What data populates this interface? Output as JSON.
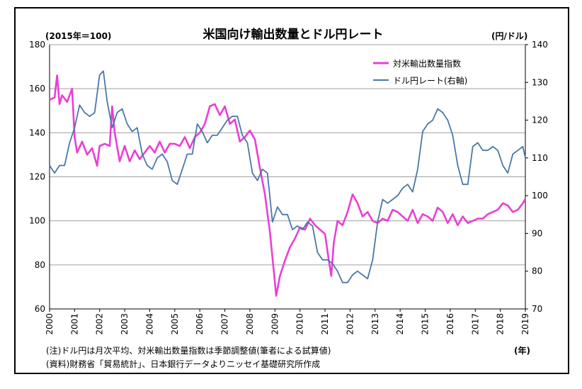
{
  "chart_data": {
    "type": "line",
    "title": "米国向け輸出数量とドル円レート",
    "y_left_unit": "(2015年＝100)",
    "y_right_unit": "(円/ドル)",
    "x_unit": "(年)",
    "y_left_range": [
      60,
      180
    ],
    "y_left_ticks": [
      "60",
      "80",
      "100",
      "120",
      "140",
      "160",
      "180"
    ],
    "y_right_range": [
      70,
      140
    ],
    "y_right_ticks": [
      "70",
      "80",
      "90",
      "100",
      "110",
      "120",
      "130",
      "140"
    ],
    "x_range": [
      2000,
      2019
    ],
    "x_ticks": [
      "2000",
      "2001",
      "2002",
      "2003",
      "2004",
      "2005",
      "2006",
      "2007",
      "2008",
      "2009",
      "2010",
      "2011",
      "2012",
      "2013",
      "2014",
      "2015",
      "2016",
      "2017",
      "2018",
      "2019"
    ],
    "grid": "horizontal",
    "legend_position": "top-right",
    "series": [
      {
        "name": "対米輸出数量指数",
        "axis": "left",
        "color": "#ea3fd6",
        "x": [
          2000.0,
          2000.2,
          2000.3,
          2000.4,
          2000.5,
          2000.7,
          2000.9,
          2001.0,
          2001.1,
          2001.3,
          2001.5,
          2001.7,
          2001.9,
          2002.0,
          2002.2,
          2002.4,
          2002.5,
          2002.6,
          2002.8,
          2003.0,
          2003.2,
          2003.4,
          2003.6,
          2003.8,
          2004.0,
          2004.2,
          2004.4,
          2004.6,
          2004.8,
          2005.0,
          2005.2,
          2005.4,
          2005.6,
          2005.8,
          2006.0,
          2006.2,
          2006.4,
          2006.6,
          2006.8,
          2007.0,
          2007.2,
          2007.4,
          2007.6,
          2007.8,
          2008.0,
          2008.2,
          2008.4,
          2008.6,
          2008.8,
          2009.0,
          2009.05,
          2009.2,
          2009.4,
          2009.6,
          2009.8,
          2010.0,
          2010.2,
          2010.4,
          2010.6,
          2010.8,
          2011.0,
          2011.15,
          2011.25,
          2011.35,
          2011.5,
          2011.7,
          2011.9,
          2012.1,
          2012.3,
          2012.5,
          2012.7,
          2012.9,
          2013.1,
          2013.3,
          2013.5,
          2013.7,
          2013.9,
          2014.1,
          2014.3,
          2014.5,
          2014.7,
          2014.9,
          2015.1,
          2015.3,
          2015.5,
          2015.7,
          2015.9,
          2016.1,
          2016.3,
          2016.5,
          2016.7,
          2016.9,
          2017.1,
          2017.3,
          2017.5,
          2017.7,
          2017.9,
          2018.1,
          2018.3,
          2018.5,
          2018.7,
          2018.9,
          2019.0
        ],
        "values": [
          155,
          156,
          166,
          153,
          157,
          154,
          160,
          138,
          131,
          136,
          130,
          133,
          125,
          134,
          135,
          134,
          152,
          140,
          127,
          134,
          127,
          132,
          128,
          131,
          134,
          131,
          136,
          131,
          135,
          135,
          134,
          138,
          133,
          138,
          140,
          144,
          152,
          153,
          148,
          152,
          144,
          146,
          136,
          138,
          141,
          137,
          124,
          112,
          95,
          72,
          66,
          75,
          82,
          88,
          92,
          97,
          96,
          101,
          98,
          96,
          94,
          82,
          75,
          90,
          100,
          98,
          104,
          112,
          108,
          102,
          104,
          100,
          99,
          101,
          100,
          105,
          104,
          102,
          100,
          105,
          99,
          103,
          102,
          100,
          106,
          104,
          99,
          103,
          98,
          102,
          99,
          100,
          101,
          101,
          103,
          104,
          105,
          108,
          107,
          104,
          105,
          108,
          110
        ]
      },
      {
        "name": "ドル円レート(右軸)",
        "axis": "right",
        "color": "#4a78a8",
        "x": [
          2000.0,
          2000.2,
          2000.4,
          2000.6,
          2000.8,
          2001.0,
          2001.2,
          2001.4,
          2001.6,
          2001.8,
          2002.0,
          2002.15,
          2002.3,
          2002.5,
          2002.7,
          2002.9,
          2003.1,
          2003.3,
          2003.5,
          2003.7,
          2003.9,
          2004.1,
          2004.3,
          2004.5,
          2004.7,
          2004.9,
          2005.1,
          2005.3,
          2005.5,
          2005.7,
          2005.9,
          2006.1,
          2006.3,
          2006.5,
          2006.7,
          2006.9,
          2007.1,
          2007.3,
          2007.5,
          2007.7,
          2007.9,
          2008.1,
          2008.3,
          2008.5,
          2008.7,
          2008.9,
          2009.1,
          2009.3,
          2009.5,
          2009.7,
          2009.9,
          2010.1,
          2010.3,
          2010.5,
          2010.7,
          2010.9,
          2011.1,
          2011.3,
          2011.5,
          2011.7,
          2011.9,
          2012.1,
          2012.3,
          2012.5,
          2012.7,
          2012.9,
          2013.1,
          2013.3,
          2013.5,
          2013.7,
          2013.9,
          2014.1,
          2014.3,
          2014.5,
          2014.7,
          2014.9,
          2015.1,
          2015.3,
          2015.5,
          2015.7,
          2015.9,
          2016.1,
          2016.3,
          2016.5,
          2016.7,
          2016.9,
          2017.1,
          2017.3,
          2017.5,
          2017.7,
          2017.9,
          2018.1,
          2018.3,
          2018.5,
          2018.7,
          2018.9,
          2019.0
        ],
        "values": [
          108,
          106,
          108,
          108,
          114,
          118,
          124,
          122,
          121,
          122,
          132,
          133,
          125,
          118,
          122,
          123,
          119,
          117,
          118,
          111,
          108,
          107,
          110,
          111,
          109,
          104,
          103,
          107,
          111,
          111,
          119,
          117,
          114,
          116,
          116,
          118,
          120,
          121,
          121,
          116,
          114,
          106,
          104,
          107,
          106,
          93,
          97,
          95,
          95,
          91,
          92,
          91,
          93,
          92,
          85,
          83,
          83,
          82,
          80,
          77,
          77,
          79,
          80,
          79,
          78,
          83,
          93,
          99,
          98,
          99,
          100,
          102,
          103,
          101,
          107,
          117,
          119,
          120,
          123,
          122,
          120,
          116,
          108,
          103,
          103,
          113,
          114,
          112,
          112,
          113,
          112,
          108,
          106,
          111,
          112,
          113,
          110
        ]
      }
    ]
  },
  "notes": {
    "line1": "(注)ドル円は月次平均、対米輸出数量指数は季節調整値(筆者による試算値)",
    "line2": "(資料)財務省「貿易統計」、日本銀行データよりニッセイ基礎研究所作成"
  }
}
